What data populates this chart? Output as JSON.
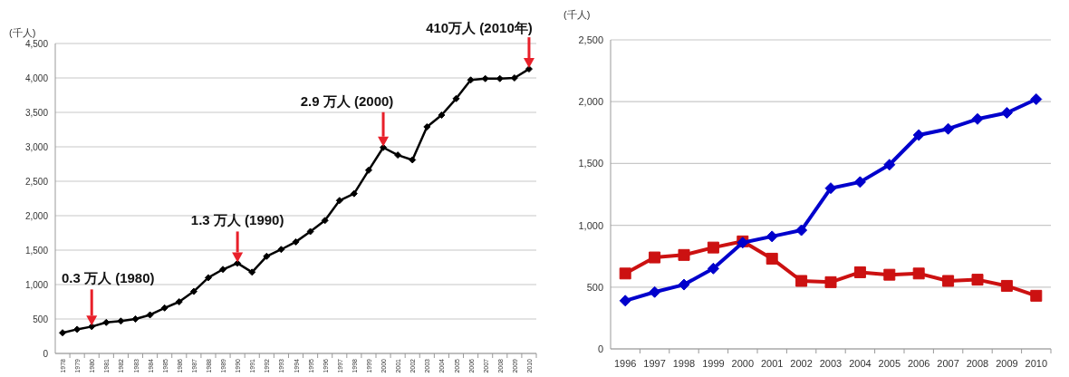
{
  "chart_data": [
    {
      "type": "line",
      "ylabel": "(千人)",
      "categories": [
        "1978",
        "1979",
        "1980",
        "1981",
        "1982",
        "1983",
        "1984",
        "1985",
        "1986",
        "1987",
        "1988",
        "1989",
        "1990",
        "1991",
        "1992",
        "1993",
        "1994",
        "1995",
        "1996",
        "1997",
        "1998",
        "1999",
        "2000",
        "2001",
        "2002",
        "2003",
        "2004",
        "2005",
        "2006",
        "2007",
        "2008",
        "2009",
        "2010"
      ],
      "series": [
        {
          "color": "#000000",
          "marker": "diamond",
          "values": [
            300,
            350,
            390,
            450,
            470,
            500,
            560,
            660,
            750,
            900,
            1100,
            1220,
            1310,
            1180,
            1410,
            1510,
            1620,
            1770,
            1930,
            2220,
            2320,
            2660,
            2990,
            2880,
            2810,
            3290,
            3460,
            3700,
            3970,
            3990,
            3990,
            4000,
            4130
          ]
        }
      ],
      "ylim": [
        0,
        4500
      ],
      "yticks": [
        {
          "value": 0,
          "label": "0"
        },
        {
          "value": 500,
          "label": "500"
        },
        {
          "value": 1000,
          "label": "1,000"
        },
        {
          "value": 1500,
          "label": "1,500"
        },
        {
          "value": 2000,
          "label": "2,000"
        },
        {
          "value": 2500,
          "label": "2,500"
        },
        {
          "value": 3000,
          "label": "3,000"
        },
        {
          "value": 3500,
          "label": "3,500"
        },
        {
          "value": 4000,
          "label": "4,000"
        },
        {
          "value": 4500,
          "label": "4,500"
        }
      ],
      "grid": "y",
      "annotations": [
        {
          "text": "0.3 万人 (1980)",
          "x": "1980",
          "y": 390
        },
        {
          "text": "1.3 万人 (1990)",
          "x": "1990",
          "y": 1310
        },
        {
          "text": "2.9 万人 (2000)",
          "x": "2000",
          "y": 2990
        },
        {
          "text": "410万人 (2010年)",
          "x": "2010",
          "y": 4130
        }
      ]
    },
    {
      "type": "line",
      "ylabel": "(千人)",
      "categories": [
        "1996",
        "1997",
        "1998",
        "1999",
        "2000",
        "2001",
        "2002",
        "2003",
        "2004",
        "2005",
        "2006",
        "2007",
        "2008",
        "2009",
        "2010"
      ],
      "series": [
        {
          "color": "#0000cc",
          "marker": "diamond",
          "values": [
            390,
            460,
            520,
            650,
            860,
            910,
            960,
            1300,
            1350,
            1490,
            1730,
            1780,
            1860,
            1910,
            2020
          ]
        },
        {
          "color": "#cc1111",
          "marker": "square",
          "values": [
            610,
            740,
            760,
            820,
            870,
            730,
            550,
            540,
            620,
            600,
            610,
            550,
            560,
            510,
            430
          ]
        }
      ],
      "ylim": [
        0,
        2500
      ],
      "yticks": [
        {
          "value": 0,
          "label": "0"
        },
        {
          "value": 500,
          "label": "500"
        },
        {
          "value": 1000,
          "label": "1,000"
        },
        {
          "value": 1500,
          "label": "1,500"
        },
        {
          "value": 2000,
          "label": "2,000"
        },
        {
          "value": 2500,
          "label": "2,500"
        }
      ],
      "grid": "y"
    }
  ]
}
